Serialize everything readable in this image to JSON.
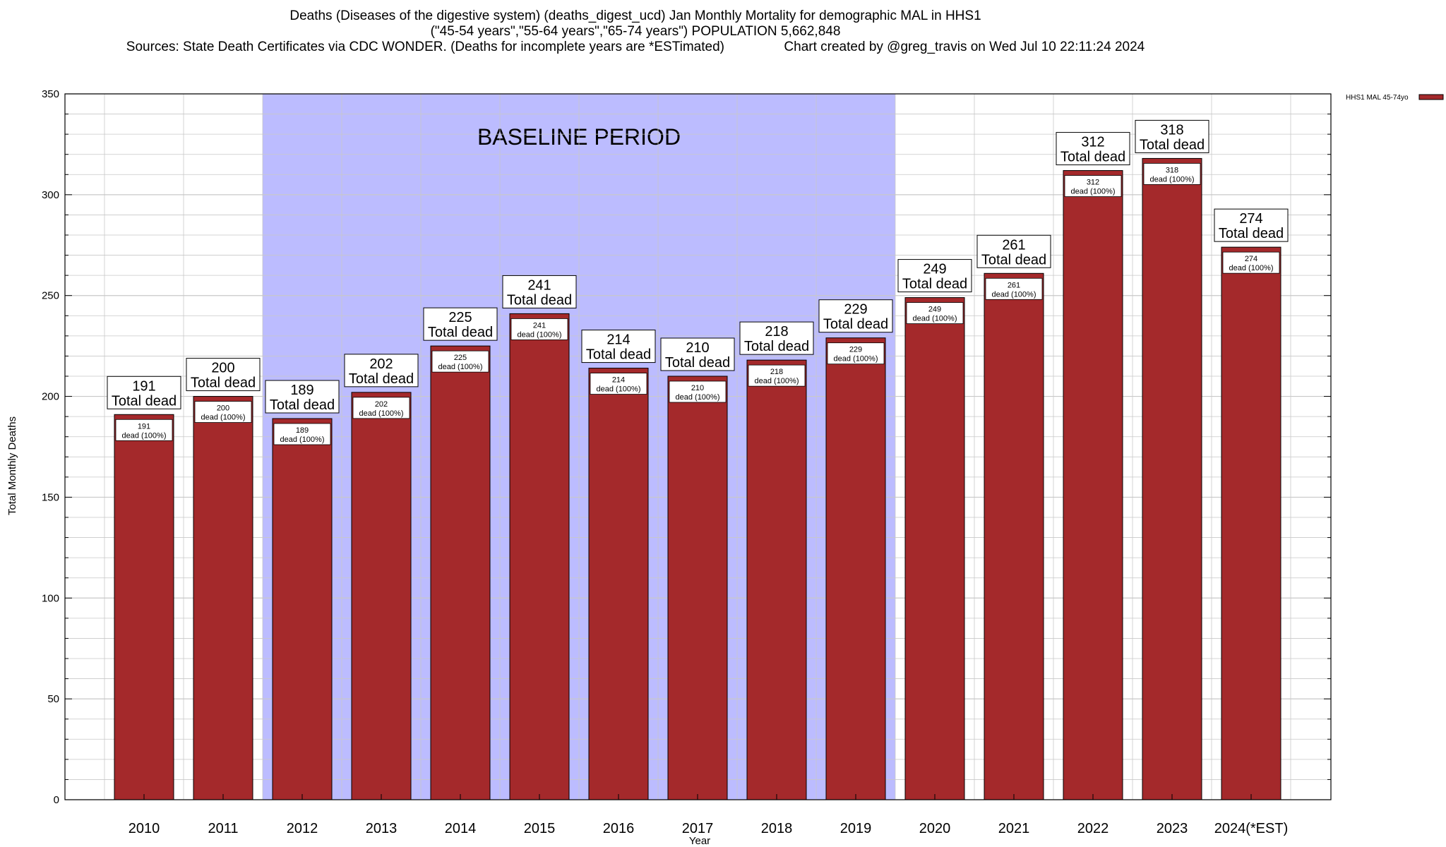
{
  "title_lines": [
    "Deaths (Diseases of the digestive system) (deaths_digest_ucd) Jan Monthly Mortality for demographic MAL in HHS1",
    "(\"45-54 years\",\"55-64 years\",\"65-74 years\") POPULATION 5,662,848",
    "Sources: State Death Certificates via CDC WONDER. (Deaths for incomplete years are *ESTimated)                Chart created by @greg_travis on Wed Jul 10 22:11:24 2024"
  ],
  "chart_data": {
    "type": "bar",
    "categories": [
      "2010",
      "2011",
      "2012",
      "2013",
      "2014",
      "2015",
      "2016",
      "2017",
      "2018",
      "2019",
      "2020",
      "2021",
      "2022",
      "2023",
      "2024(*EST)"
    ],
    "series": [
      {
        "name": "HHS1 MAL 45-74yo",
        "values": [
          191,
          200,
          189,
          202,
          225,
          241,
          214,
          210,
          218,
          229,
          249,
          261,
          312,
          318,
          274
        ]
      }
    ],
    "xlabel": "Year",
    "ylabel": "Total Monthly Deaths",
    "ylim": [
      0,
      350
    ],
    "yticks": [
      0,
      50,
      100,
      150,
      200,
      250,
      300,
      350
    ],
    "grid": true,
    "legend_position": "top-right",
    "bar_top_label": "Total dead",
    "bar_inner_label": "dead (100%)",
    "baseline_period": {
      "label": "BASELINE PERIOD",
      "start": "2012",
      "end": "2019"
    },
    "colors": {
      "bar": "#a4292b",
      "baseline": "#bcbcff",
      "grid": "#c8c8c8"
    }
  }
}
